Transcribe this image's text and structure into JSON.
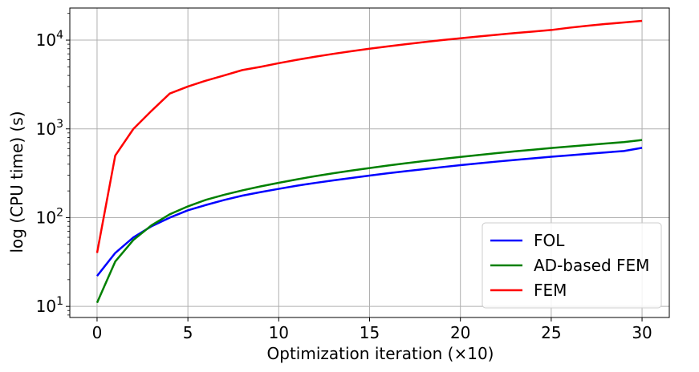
{
  "chart_data": {
    "type": "line",
    "title": "",
    "xlabel": "Optimization iteration (×10)",
    "ylabel": "log (CPU time) (s)",
    "xlim": [
      -1.5,
      31.5
    ],
    "ylim": [
      7.5,
      23000
    ],
    "yscale": "log",
    "grid": true,
    "legend_position": "bottom-right",
    "x_ticks": [
      0,
      5,
      10,
      15,
      20,
      25,
      30
    ],
    "x_tick_labels": [
      "0",
      "5",
      "10",
      "15",
      "20",
      "25",
      "30"
    ],
    "y_ticks": [
      10,
      100,
      1000,
      10000
    ],
    "y_tick_labels": [
      {
        "base": "10",
        "exp": "1"
      },
      {
        "base": "10",
        "exp": "2"
      },
      {
        "base": "10",
        "exp": "3"
      },
      {
        "base": "10",
        "exp": "4"
      }
    ],
    "series": [
      {
        "name": "FOL",
        "color": "#0000ff",
        "x": [
          0,
          1,
          2,
          3,
          4,
          5,
          6,
          7,
          8,
          9,
          10,
          11,
          12,
          13,
          14,
          15,
          16,
          17,
          18,
          19,
          20,
          21,
          22,
          23,
          24,
          25,
          26,
          27,
          28,
          29,
          30
        ],
        "y": [
          22,
          40,
          60,
          80,
          100,
          121,
          139,
          158,
          177,
          194,
          211,
          229,
          246,
          263,
          280,
          298,
          316,
          334,
          352,
          371,
          390,
          409,
          428,
          447,
          466,
          485,
          504,
          523,
          543,
          563,
          612
        ]
      },
      {
        "name": "AD-based FEM",
        "color": "#008000",
        "x": [
          0,
          1,
          2,
          3,
          4,
          5,
          6,
          7,
          8,
          9,
          10,
          11,
          12,
          13,
          14,
          15,
          16,
          17,
          18,
          19,
          20,
          21,
          22,
          23,
          24,
          25,
          26,
          27,
          28,
          29,
          30
        ],
        "y": [
          11,
          32,
          56,
          82,
          109,
          134,
          159,
          181,
          203,
          225,
          247,
          270,
          293,
          316,
          339,
          362,
          386,
          410,
          434,
          458,
          483,
          508,
          533,
          558,
          583,
          608,
          633,
          658,
          684,
          710,
          750
        ]
      },
      {
        "name": "FEM",
        "color": "#ff0000",
        "x": [
          0,
          1,
          2,
          3,
          4,
          5,
          6,
          7,
          8,
          9,
          10,
          11,
          12,
          13,
          14,
          15,
          16,
          17,
          18,
          19,
          20,
          21,
          22,
          23,
          24,
          25,
          26,
          27,
          28,
          29,
          30
        ],
        "y": [
          40,
          500,
          1000,
          1600,
          2500,
          3000,
          3500,
          4000,
          4600,
          5000,
          5500,
          6000,
          6500,
          7000,
          7500,
          8000,
          8500,
          9000,
          9500,
          10000,
          10500,
          11000,
          11500,
          12000,
          12500,
          13000,
          13800,
          14500,
          15200,
          15800,
          16500
        ]
      }
    ]
  }
}
